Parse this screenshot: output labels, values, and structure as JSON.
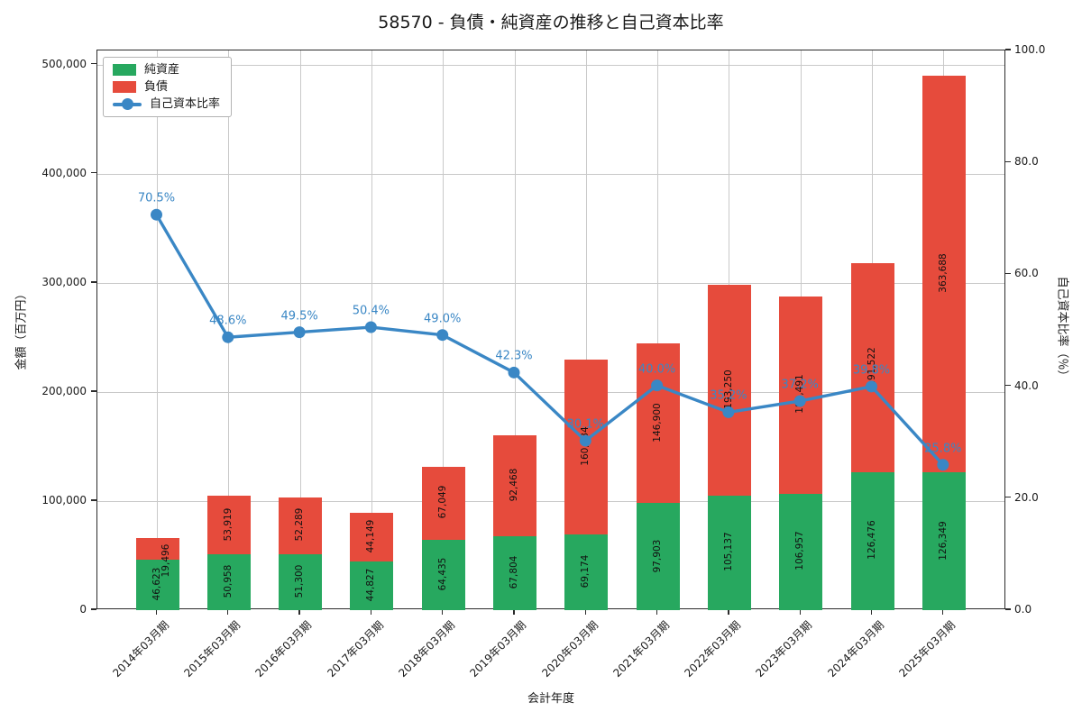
{
  "title": "58570 - 負債・純資産の推移と自己資本比率",
  "chart_data": {
    "type": "bar",
    "subtype": "stacked-bars-with-line-overlay",
    "title": "58570 - 負債・純資産の推移と自己資本比率",
    "xlabel": "会計年度",
    "ylabel_left": "金額（百万円）",
    "ylabel_right": "自己資本比率（％）",
    "categories": [
      "2014年03月期",
      "2015年03月期",
      "2016年03月期",
      "2017年03月期",
      "2018年03月期",
      "2019年03月期",
      "2020年03月期",
      "2021年03月期",
      "2022年03月期",
      "2023年03月期",
      "2024年03月期",
      "2025年03月期"
    ],
    "series": [
      {
        "name": "純資産",
        "type": "bar",
        "color": "#27a85f",
        "values": [
          46623,
          50958,
          51300,
          44827,
          64435,
          67804,
          69174,
          97903,
          105137,
          106957,
          126476,
          126349
        ]
      },
      {
        "name": "負債",
        "type": "bar",
        "color": "#e64b3c",
        "values": [
          19496,
          53919,
          52289,
          44149,
          67049,
          92468,
          160634,
          146900,
          193250,
          180491,
          191522,
          363688
        ]
      },
      {
        "name": "自己資本比率",
        "type": "line",
        "color": "#3a87c5",
        "unit": "%",
        "values": [
          70.5,
          48.6,
          49.5,
          50.4,
          49.0,
          42.3,
          30.1,
          40.0,
          35.2,
          37.2,
          39.8,
          25.8
        ]
      }
    ],
    "yticks_left": [
      "0",
      "100,000",
      "200,000",
      "300,000",
      "400,000",
      "500,000"
    ],
    "yticks_right": [
      "0.0",
      "20.0",
      "40.0",
      "60.0",
      "80.0",
      "100.0"
    ],
    "ylim_left": [
      0,
      513000
    ],
    "ylim_right": [
      0,
      100
    ],
    "grid": true,
    "legend_position": "upper-left",
    "colors": {
      "net_assets": "#27a85f",
      "liabilities": "#e64b3c",
      "equity_ratio_line": "#3a87c5",
      "grid": "#c9c9c9",
      "spine": "#2b2b2b",
      "text": "#1a1a1a"
    }
  }
}
